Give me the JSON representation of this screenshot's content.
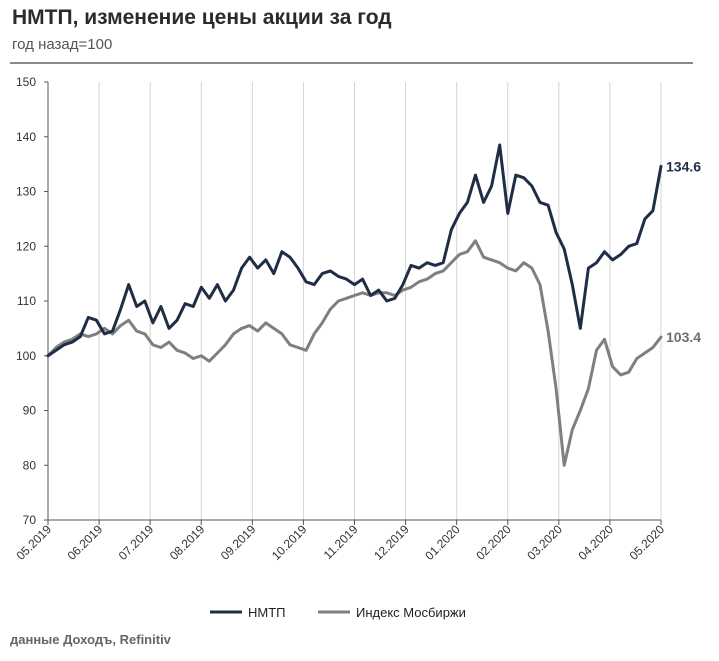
{
  "header": {
    "title": "НМТП, изменение цены акции за год",
    "subtitle": "год назад=100"
  },
  "source": "данные Доходъ, Refinitiv",
  "chart_data": {
    "type": "line",
    "title": "НМТП, изменение цены акции за год",
    "subtitle": "год назад=100",
    "ylim": [
      70,
      150
    ],
    "y_ticks": [
      70,
      80,
      90,
      100,
      110,
      120,
      130,
      140,
      150
    ],
    "x_ticks": [
      "05.2019",
      "06.2019",
      "07.2019",
      "08.2019",
      "09.2019",
      "10.2019",
      "11.2019",
      "12.2019",
      "01.2020",
      "02.2020",
      "03.2020",
      "04.2020",
      "05.2020"
    ],
    "grid": "vertical",
    "legend": "bottom-center",
    "series": [
      {
        "name": "НМТП",
        "color": "#1f2e46",
        "end_label": "134.6",
        "values": [
          [
            0,
            100
          ],
          [
            1,
            101
          ],
          [
            2,
            102
          ],
          [
            3,
            102.5
          ],
          [
            4,
            103.5
          ],
          [
            5,
            107
          ],
          [
            6,
            106.5
          ],
          [
            7,
            104
          ],
          [
            8,
            104.5
          ],
          [
            9,
            108.5
          ],
          [
            10,
            113
          ],
          [
            11,
            109
          ],
          [
            12,
            110
          ],
          [
            13,
            106
          ],
          [
            14,
            109
          ],
          [
            15,
            105
          ],
          [
            16,
            106.5
          ],
          [
            17,
            109.5
          ],
          [
            18,
            109
          ],
          [
            19,
            112.5
          ],
          [
            20,
            110.5
          ],
          [
            21,
            113
          ],
          [
            22,
            110
          ],
          [
            23,
            112
          ],
          [
            24,
            116
          ],
          [
            25,
            118
          ],
          [
            26,
            116
          ],
          [
            27,
            117.5
          ],
          [
            28,
            115
          ],
          [
            29,
            119
          ],
          [
            30,
            118
          ],
          [
            31,
            116
          ],
          [
            32,
            113.5
          ],
          [
            33,
            113
          ],
          [
            34,
            115
          ],
          [
            35,
            115.5
          ],
          [
            36,
            114.5
          ],
          [
            37,
            114
          ],
          [
            38,
            113
          ],
          [
            39,
            114
          ],
          [
            40,
            111
          ],
          [
            41,
            112
          ],
          [
            42,
            110
          ],
          [
            43,
            110.5
          ],
          [
            44,
            113
          ],
          [
            45,
            116.5
          ],
          [
            46,
            116
          ],
          [
            47,
            117
          ],
          [
            48,
            116.5
          ],
          [
            49,
            117
          ],
          [
            50,
            123
          ],
          [
            51,
            126
          ],
          [
            52,
            128
          ],
          [
            53,
            133
          ],
          [
            54,
            128
          ],
          [
            55,
            131
          ],
          [
            56,
            138.5
          ],
          [
            57,
            126
          ],
          [
            58,
            133
          ],
          [
            59,
            132.5
          ],
          [
            60,
            131
          ],
          [
            61,
            128
          ],
          [
            62,
            127.5
          ],
          [
            63,
            122.5
          ],
          [
            64,
            119.5
          ],
          [
            65,
            113
          ],
          [
            66,
            105
          ],
          [
            67,
            116
          ],
          [
            68,
            117
          ],
          [
            69,
            119
          ],
          [
            70,
            117.5
          ],
          [
            71,
            118.5
          ],
          [
            72,
            120
          ],
          [
            73,
            120.5
          ],
          [
            74,
            125
          ],
          [
            75,
            126.5
          ],
          [
            76,
            134.6
          ]
        ]
      },
      {
        "name": "Индекс Мосбиржи",
        "color": "#7f7f7f",
        "end_label": "103.4",
        "values": [
          [
            0,
            100
          ],
          [
            1,
            101.5
          ],
          [
            2,
            102.5
          ],
          [
            3,
            103
          ],
          [
            4,
            104
          ],
          [
            5,
            103.5
          ],
          [
            6,
            104
          ],
          [
            7,
            105
          ],
          [
            8,
            104
          ],
          [
            9,
            105.5
          ],
          [
            10,
            106.5
          ],
          [
            11,
            104.5
          ],
          [
            12,
            104
          ],
          [
            13,
            102
          ],
          [
            14,
            101.5
          ],
          [
            15,
            102.5
          ],
          [
            16,
            101
          ],
          [
            17,
            100.5
          ],
          [
            18,
            99.5
          ],
          [
            19,
            100
          ],
          [
            20,
            99
          ],
          [
            21,
            100.5
          ],
          [
            22,
            102
          ],
          [
            23,
            104
          ],
          [
            24,
            105
          ],
          [
            25,
            105.5
          ],
          [
            26,
            104.5
          ],
          [
            27,
            106
          ],
          [
            28,
            105
          ],
          [
            29,
            104
          ],
          [
            30,
            102
          ],
          [
            31,
            101.5
          ],
          [
            32,
            101
          ],
          [
            33,
            104
          ],
          [
            34,
            106
          ],
          [
            35,
            108.5
          ],
          [
            36,
            110
          ],
          [
            37,
            110.5
          ],
          [
            38,
            111
          ],
          [
            39,
            111.5
          ],
          [
            40,
            111
          ],
          [
            41,
            111.5
          ],
          [
            42,
            111.5
          ],
          [
            43,
            111
          ],
          [
            44,
            112
          ],
          [
            45,
            112.5
          ],
          [
            46,
            113.5
          ],
          [
            47,
            114
          ],
          [
            48,
            115
          ],
          [
            49,
            115.5
          ],
          [
            50,
            117
          ],
          [
            51,
            118.5
          ],
          [
            52,
            119
          ],
          [
            53,
            121
          ],
          [
            54,
            118
          ],
          [
            55,
            117.5
          ],
          [
            56,
            117
          ],
          [
            57,
            116
          ],
          [
            58,
            115.5
          ],
          [
            59,
            117
          ],
          [
            60,
            116
          ],
          [
            61,
            113
          ],
          [
            62,
            104.5
          ],
          [
            63,
            94
          ],
          [
            64,
            80
          ],
          [
            65,
            86.5
          ],
          [
            66,
            90
          ],
          [
            67,
            94
          ],
          [
            68,
            101
          ],
          [
            69,
            103
          ],
          [
            70,
            98
          ],
          [
            71,
            96.5
          ],
          [
            72,
            97
          ],
          [
            73,
            99.5
          ],
          [
            74,
            100.5
          ],
          [
            75,
            101.5
          ],
          [
            76,
            103.4
          ]
        ]
      }
    ]
  }
}
